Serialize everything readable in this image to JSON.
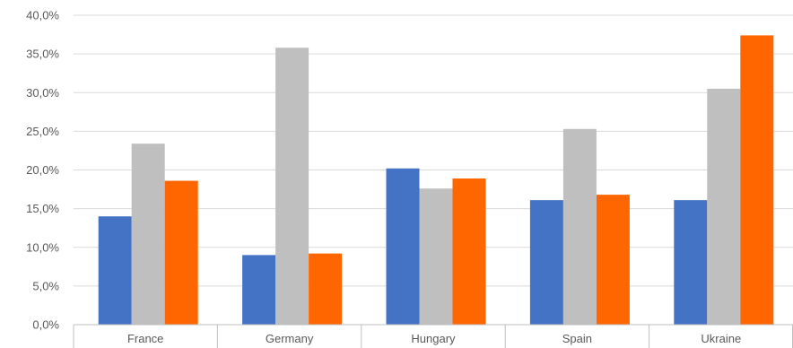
{
  "chart_data": {
    "type": "bar",
    "categories": [
      "France",
      "Germany",
      "Hungary",
      "Spain",
      "Ukraine"
    ],
    "series": [
      {
        "color": "#4472c4",
        "values": [
          14.0,
          9.0,
          20.2,
          16.1,
          16.1
        ]
      },
      {
        "color": "#bfbfbf",
        "values": [
          23.4,
          35.8,
          17.6,
          25.3,
          30.5
        ]
      },
      {
        "color": "#ff6600",
        "values": [
          18.6,
          9.2,
          18.9,
          16.8,
          37.4
        ]
      }
    ],
    "ylim": [
      0,
      40
    ],
    "yticks": [
      0,
      5,
      10,
      15,
      20,
      25,
      30,
      35,
      40
    ],
    "ytick_labels": [
      "0,0%",
      "5,0%",
      "10,0%",
      "15,0%",
      "20,0%",
      "25,0%",
      "30,0%",
      "35,0%",
      "40,0%"
    ],
    "grid": true,
    "gridline_color": "#d9d9d9",
    "axis_line_color": "#bfbfbf",
    "legend": "none"
  }
}
